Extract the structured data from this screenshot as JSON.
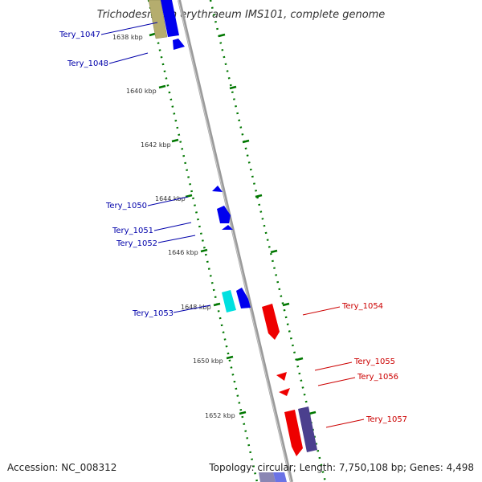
{
  "title": "Trichodesmium erythraeum IMS101, complete genome",
  "footer": {
    "accession": "Accession: NC_008312",
    "summary": "Topology: circular; Length: 7,750,108 bp; Genes: 4,498"
  },
  "colors": {
    "forward_label": "#0000aa",
    "reverse_label": "#cc0000",
    "tick": "#007700",
    "backbone": "#888888",
    "gene_blue": "#0000ee",
    "gene_red": "#ee0000",
    "gene_cyan": "#00e0e0",
    "gene_khaki": "#b5ad6e",
    "gene_purple": "#4b3f8e"
  },
  "scale": {
    "unit": "kbp",
    "major_ticks": [
      {
        "kbp": 1638,
        "label": "1638 kbp"
      },
      {
        "kbp": 1640,
        "label": "1640 kbp"
      },
      {
        "kbp": 1642,
        "label": "1642 kbp"
      },
      {
        "kbp": 1644,
        "label": "1644 kbp"
      },
      {
        "kbp": 1646,
        "label": "1646 kbp"
      },
      {
        "kbp": 1648,
        "label": "1648 kbp"
      },
      {
        "kbp": 1650,
        "label": "1650 kbp"
      },
      {
        "kbp": 1652,
        "label": "1652 kbp"
      }
    ]
  },
  "genes": [
    {
      "name": "Tery_1047",
      "strand": "forward",
      "color": "blue"
    },
    {
      "name": "Tery_1048",
      "strand": "forward",
      "color": "blue"
    },
    {
      "name": "Tery_1050",
      "strand": "forward",
      "color": "blue"
    },
    {
      "name": "Tery_1051",
      "strand": "forward",
      "color": "blue"
    },
    {
      "name": "Tery_1052",
      "strand": "forward",
      "color": "blue"
    },
    {
      "name": "Tery_1053",
      "strand": "forward",
      "color": "cyan"
    },
    {
      "name": "Tery_1054",
      "strand": "reverse",
      "color": "red"
    },
    {
      "name": "Tery_1055",
      "strand": "reverse",
      "color": "red"
    },
    {
      "name": "Tery_1056",
      "strand": "reverse",
      "color": "red"
    },
    {
      "name": "Tery_1057",
      "strand": "reverse",
      "color": "red"
    }
  ]
}
